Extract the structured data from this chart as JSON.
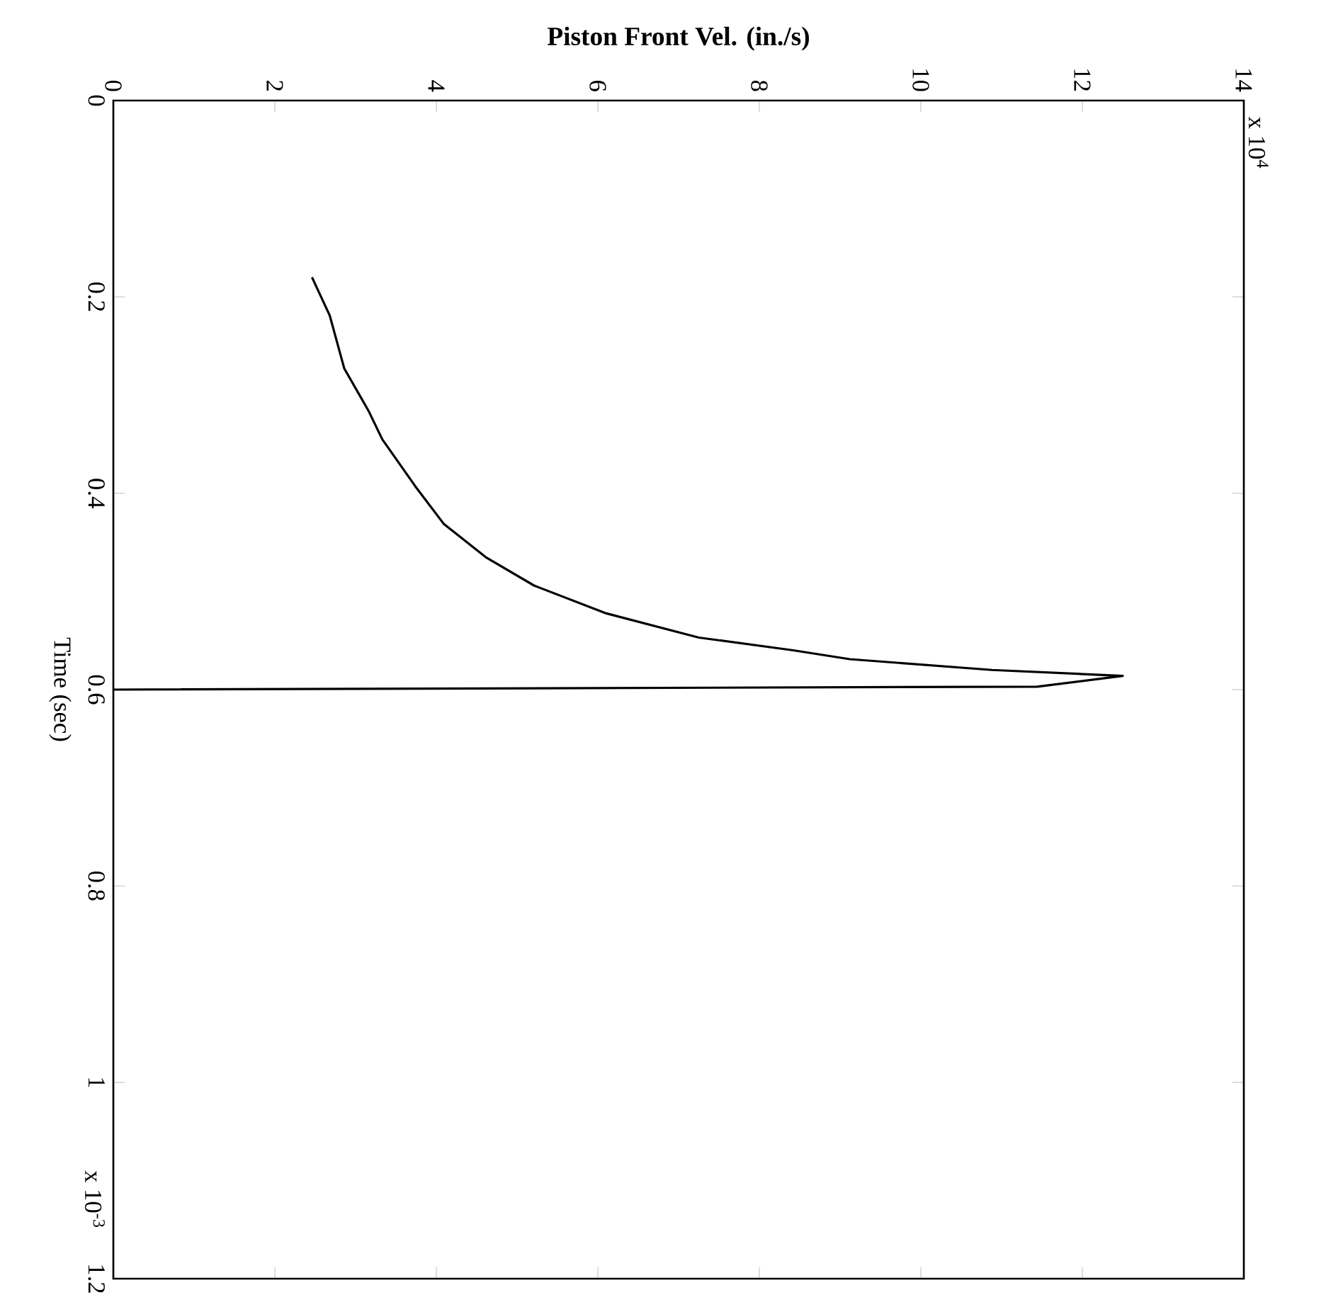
{
  "chart_data": {
    "type": "line",
    "xlabel": "Piston Front Vel. (in./s)",
    "ylabel": "Time (sec)",
    "annotations": [
      "x 10$^{-3}$",
      "x 10$^{4}$"
    ],
    "x": [
      2.46,
      2.68,
      2.86,
      3.16,
      3.33,
      3.74,
      4.09,
      4.61,
      5.21,
      6.09,
      7.25,
      8.42,
      9.12,
      10.88,
      12.5,
      11.44,
      0
    ],
    "series": [
      {
        "color": "#000000",
        "values": [
          0.18,
          0.219,
          0.273,
          0.316,
          0.345,
          0.393,
          0.431,
          0.465,
          0.494,
          0.522,
          0.547,
          0.56,
          0.569,
          0.58,
          0.586,
          0.597,
          0.6
        ]
      }
    ],
    "xlim": [
      0,
      14
    ],
    "xticks": [
      0,
      2,
      4,
      6,
      8,
      10,
      12,
      14
    ],
    "ylim": [
      1.2,
      0
    ],
    "yticks": [
      0,
      0.2,
      0.4,
      0.6,
      0.8,
      1,
      1.2
    ],
    "marker": "none",
    "line_style": "solid"
  }
}
